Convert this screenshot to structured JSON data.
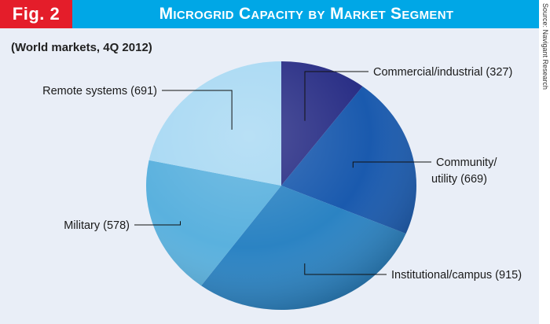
{
  "header": {
    "fig_label": "Fig. 2",
    "title": "Microgrid Capacity by Market Segment"
  },
  "subtitle": "(World markets, 4Q 2012)",
  "source": "Source: Navigant Research",
  "colors": {
    "header": "#00a7e6",
    "fig_badge": "#e41d2a",
    "background": "#e9eef7"
  },
  "chart_data": {
    "type": "pie",
    "title": "Microgrid Capacity by Market Segment",
    "subtitle": "(World markets, 4Q 2012)",
    "start": "12 o'clock, clockwise",
    "slices": [
      {
        "name": "Commercial/industrial",
        "value": 327,
        "label_lines": [
          "Commercial/industrial (327)"
        ],
        "color": "#2a2f86"
      },
      {
        "name": "Community/utility",
        "value": 669,
        "label_lines": [
          "Community/",
          "utility (669)"
        ],
        "color": "#1a5aae"
      },
      {
        "name": "Institutional/campus",
        "value": 915,
        "label_lines": [
          "Institutional/campus (915)"
        ],
        "color": "#2b83c3"
      },
      {
        "name": "Military",
        "value": 578,
        "label_lines": [
          "Military (578)"
        ],
        "color": "#5ab1de"
      },
      {
        "name": "Remote systems",
        "value": 691,
        "label_lines": [
          "Remote systems (691)"
        ],
        "color": "#a9d9f3"
      }
    ]
  }
}
